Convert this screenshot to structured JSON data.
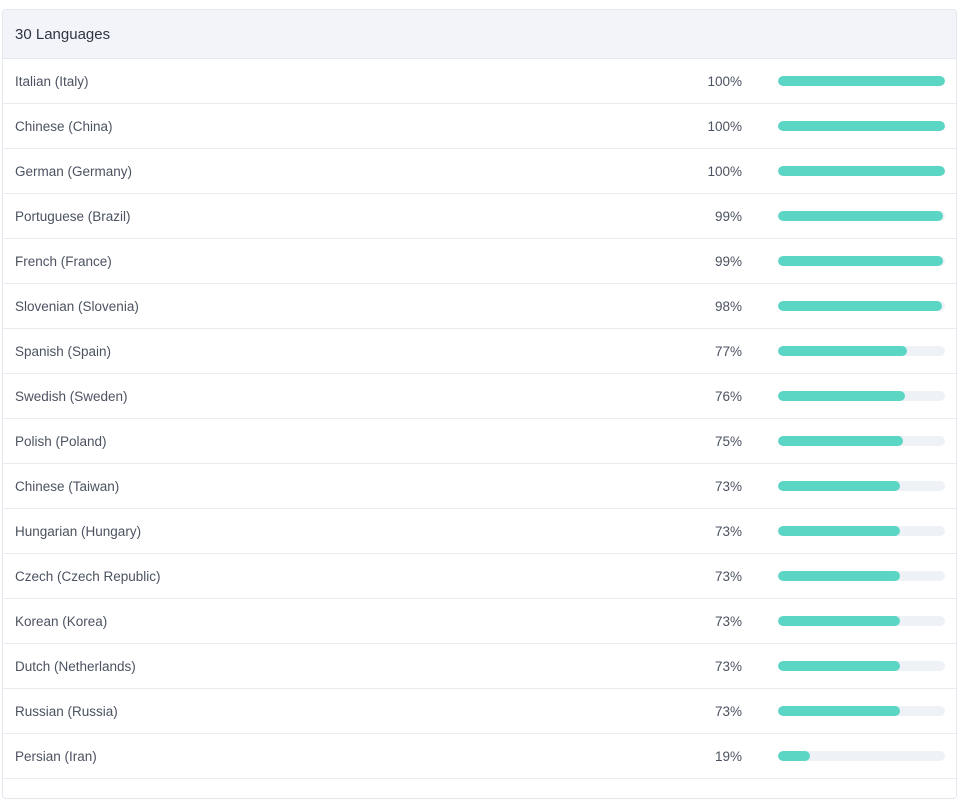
{
  "header": {
    "title": "30 Languages"
  },
  "colors": {
    "bar_fill": "#5cd6c4",
    "bar_track": "#eef1f6",
    "header_bg": "#f2f4f9"
  },
  "languages": [
    {
      "name": "Italian (Italy)",
      "percent_label": "100%",
      "progress": 100
    },
    {
      "name": "Chinese (China)",
      "percent_label": "100%",
      "progress": 100
    },
    {
      "name": "German (Germany)",
      "percent_label": "100%",
      "progress": 100
    },
    {
      "name": "Portuguese (Brazil)",
      "percent_label": "99%",
      "progress": 99
    },
    {
      "name": "French (France)",
      "percent_label": "99%",
      "progress": 99
    },
    {
      "name": "Slovenian (Slovenia)",
      "percent_label": "98%",
      "progress": 98
    },
    {
      "name": "Spanish (Spain)",
      "percent_label": "77%",
      "progress": 77
    },
    {
      "name": "Swedish (Sweden)",
      "percent_label": "76%",
      "progress": 76
    },
    {
      "name": "Polish (Poland)",
      "percent_label": "75%",
      "progress": 75
    },
    {
      "name": "Chinese (Taiwan)",
      "percent_label": "73%",
      "progress": 73
    },
    {
      "name": "Hungarian (Hungary)",
      "percent_label": "73%",
      "progress": 73
    },
    {
      "name": "Czech (Czech Republic)",
      "percent_label": "73%",
      "progress": 73
    },
    {
      "name": "Korean (Korea)",
      "percent_label": "73%",
      "progress": 73
    },
    {
      "name": "Dutch (Netherlands)",
      "percent_label": "73%",
      "progress": 73
    },
    {
      "name": "Russian (Russia)",
      "percent_label": "73%",
      "progress": 73
    },
    {
      "name": "Persian (Iran)",
      "percent_label": "19%",
      "progress": 19
    }
  ]
}
